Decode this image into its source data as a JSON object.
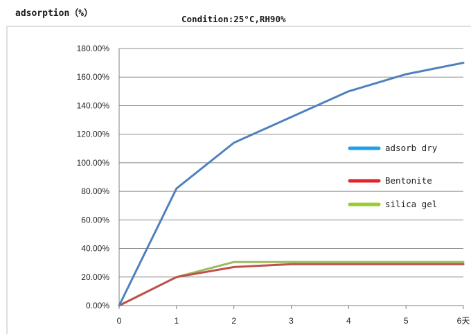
{
  "chart_data": {
    "type": "line",
    "title": "adsorption（%）",
    "subtitle": "Condition:25°C,RH90%",
    "x": [
      0,
      1,
      2,
      3,
      4,
      5,
      6
    ],
    "x_tick_labels": [
      "0",
      "1",
      "2",
      "3",
      "4",
      "5",
      "6天"
    ],
    "y_tick_labels": [
      "0.00%",
      "20.00%",
      "40.00%",
      "60.00%",
      "80.00%",
      "100.00%",
      "120.00%",
      "140.00%",
      "160.00%",
      "180.00%"
    ],
    "xlim": [
      0,
      6
    ],
    "ylim": [
      0,
      180
    ],
    "y_step": 20,
    "grid": "horizontal",
    "legend_position": "right",
    "series": [
      {
        "name": "adsorb dry",
        "color": "#4f81bd",
        "legend_color": "#1fa0e8",
        "values": [
          0,
          82,
          114,
          132,
          150,
          162,
          170
        ]
      },
      {
        "name": "Bentonite",
        "color": "#c0504d",
        "legend_color": "#e0242a",
        "values": [
          0,
          20,
          27,
          29,
          29,
          29,
          29
        ]
      },
      {
        "name": "silica gel",
        "color": "#9bbb59",
        "legend_color": "#9acd32",
        "values": [
          0,
          20,
          30.5,
          30.5,
          30.5,
          30.5,
          30.5
        ]
      }
    ]
  }
}
